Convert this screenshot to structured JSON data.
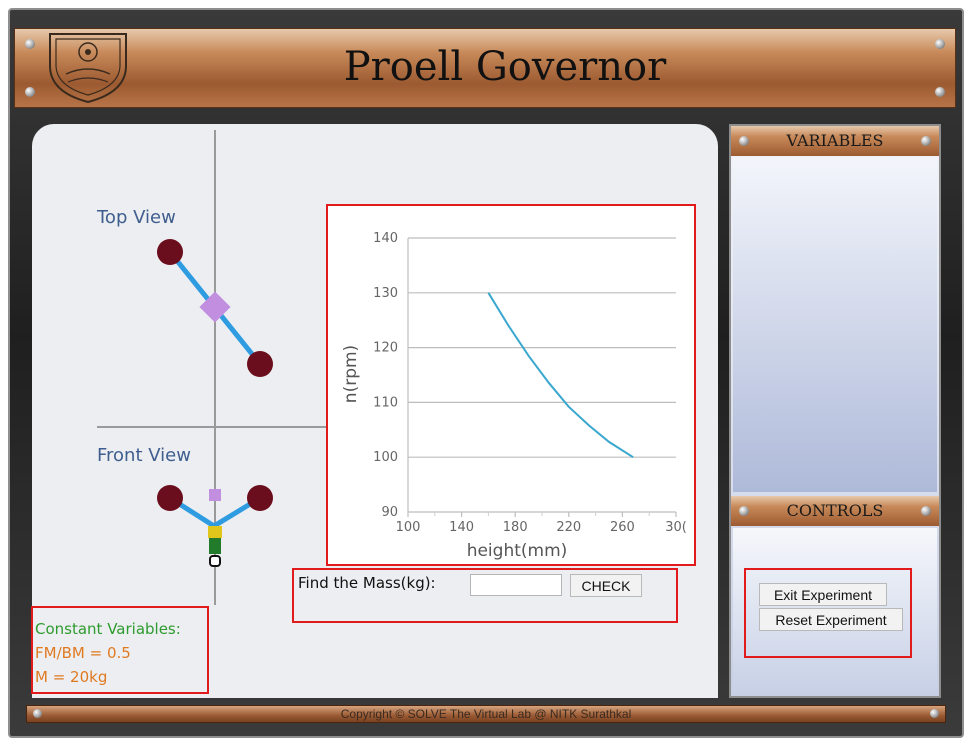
{
  "header": {
    "title": "Proell Governor"
  },
  "views": {
    "top_label": "Top View",
    "front_label": "Front View"
  },
  "chart_data": {
    "type": "line",
    "xlabel": "height(mm)",
    "ylabel": "n(rpm)",
    "xlim": [
      100,
      300
    ],
    "ylim": [
      90,
      140
    ],
    "x_ticks": [
      "100",
      "140",
      "180",
      "220",
      "260",
      "30("
    ],
    "y_ticks": [
      "90",
      "100",
      "110",
      "120",
      "130",
      "140"
    ],
    "grid": true,
    "series": [
      {
        "color": "#3aa7cf",
        "x": [
          160,
          175,
          190,
          205,
          220,
          235,
          250,
          268
        ],
        "y": [
          130,
          124,
          118.5,
          113.6,
          109.2,
          105.8,
          102.8,
          100
        ]
      }
    ]
  },
  "find": {
    "label": "Find the Mass(kg):",
    "input_value": "",
    "check_label": "CHECK"
  },
  "constants": {
    "title": "Constant Variables:",
    "items": [
      "FM/BM = 0.5",
      "M = 20kg"
    ]
  },
  "side": {
    "variables_title": "VARIABLES",
    "controls_title": "CONTROLS"
  },
  "controls": {
    "exit_label": "Exit Experiment",
    "reset_label": "Reset Experiment"
  },
  "footer": {
    "text": "Copyright © SOLVE The Virtual Lab @ NITK Surathkal"
  },
  "colors": {
    "highlight_box": "#e11b1b",
    "chart_line": "#3aa7cf",
    "ball": "#6a0d1c",
    "arm": "#2f9be0",
    "sleeve": "#c18ee0"
  }
}
